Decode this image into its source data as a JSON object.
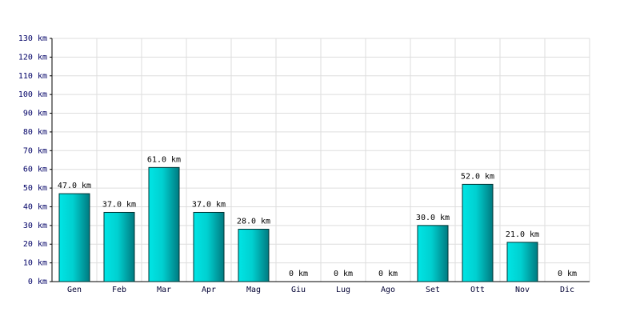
{
  "chart_data": {
    "type": "bar",
    "categories": [
      "Gen",
      "Feb",
      "Mar",
      "Apr",
      "Mag",
      "Giu",
      "Lug",
      "Ago",
      "Set",
      "Ott",
      "Nov",
      "Dic"
    ],
    "values": [
      47,
      37,
      61,
      37,
      28,
      0,
      0,
      0,
      30,
      52,
      21,
      0
    ],
    "value_labels": [
      "47.0 km",
      "37.0 km",
      "61.0 km",
      "37.0 km",
      "28.0 km",
      "0 km",
      "0 km",
      "0 km",
      "30.0 km",
      "52.0 km",
      "21.0 km",
      "0 km"
    ],
    "color": "#00cccc",
    "ylim": [
      0,
      130
    ],
    "yticks": [
      {
        "value": 0,
        "label": "0 km"
      },
      {
        "value": 10,
        "label": "10 km"
      },
      {
        "value": 20,
        "label": "20 km"
      },
      {
        "value": 30,
        "label": "30 km"
      },
      {
        "value": 40,
        "label": "40 km"
      },
      {
        "value": 50,
        "label": "50 km"
      },
      {
        "value": 60,
        "label": "60 km"
      },
      {
        "value": 70,
        "label": "70 km"
      },
      {
        "value": 80,
        "label": "80 km"
      },
      {
        "value": 90,
        "label": "90 km"
      },
      {
        "value": 100,
        "label": "100 km"
      },
      {
        "value": 110,
        "label": "110 km"
      },
      {
        "value": 120,
        "label": "120 km"
      },
      {
        "value": 130,
        "label": "130 km"
      }
    ],
    "grid": true
  }
}
